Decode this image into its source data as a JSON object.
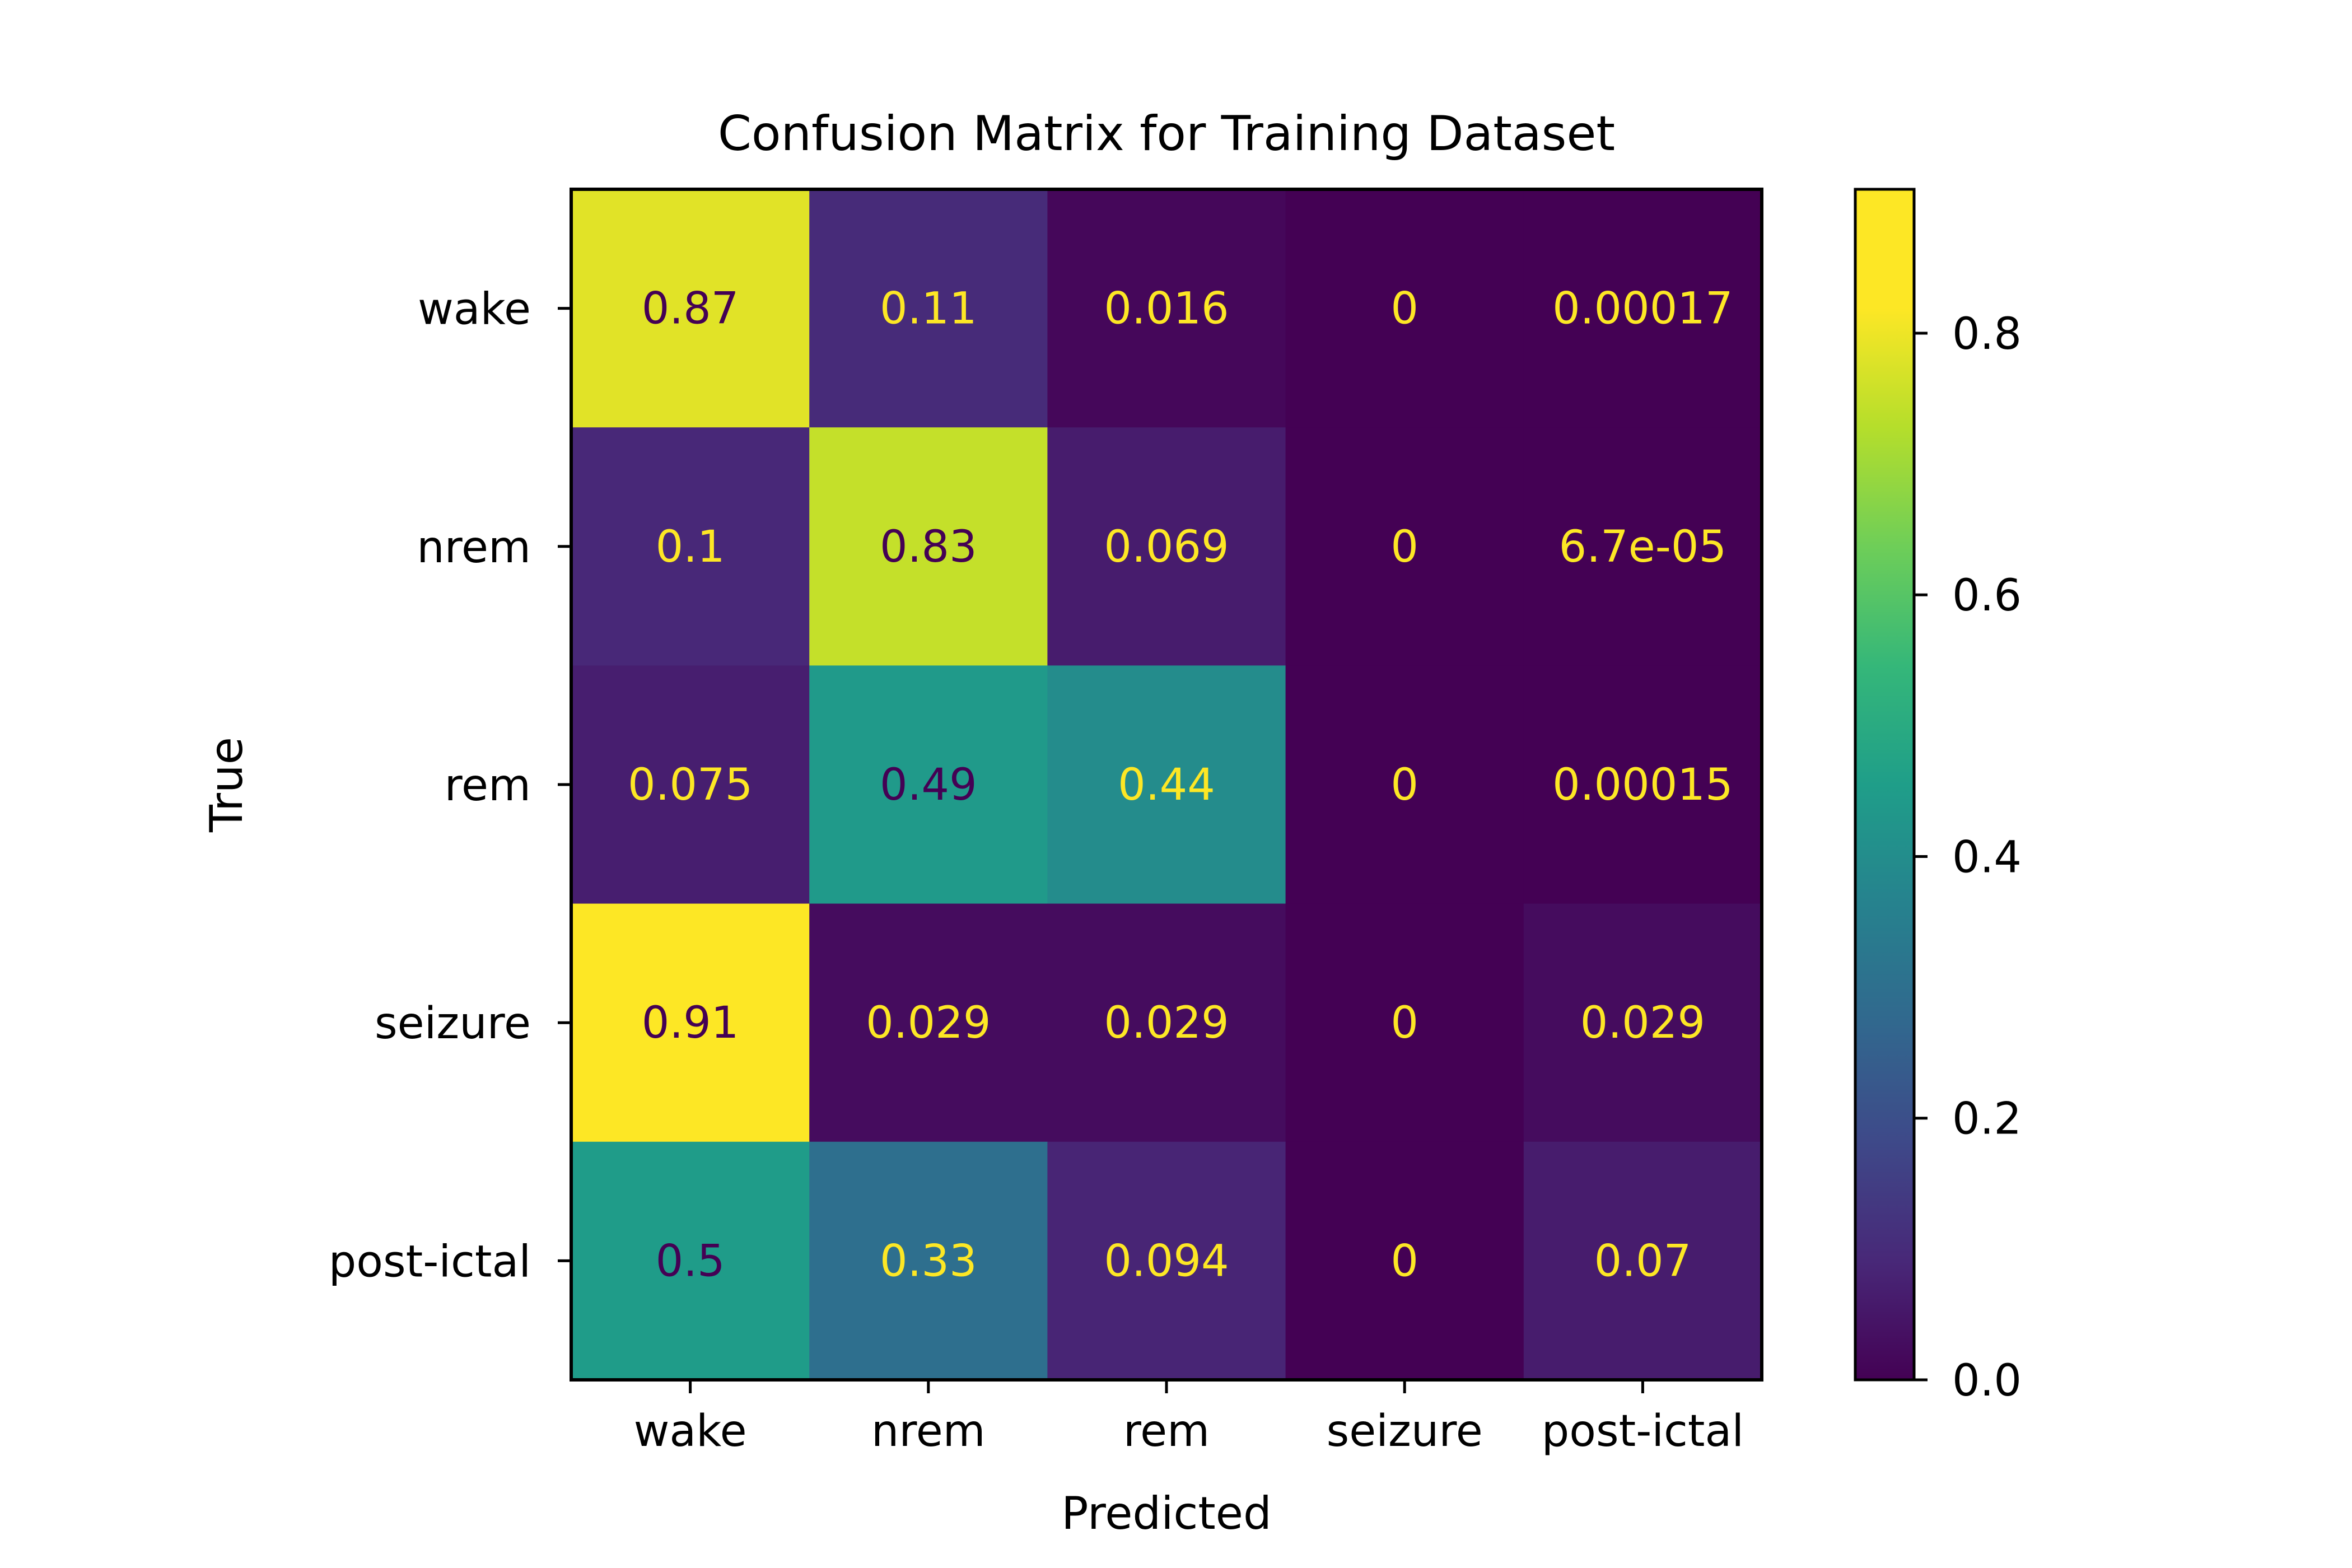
{
  "chart_data": {
    "type": "heatmap",
    "title": "Confusion Matrix for Training Dataset",
    "xlabel": "Predicted",
    "ylabel": "True",
    "x_categories": [
      "wake",
      "nrem",
      "rem",
      "seizure",
      "post-ictal"
    ],
    "y_categories": [
      "wake",
      "nrem",
      "rem",
      "seizure",
      "post-ictal"
    ],
    "values": [
      [
        0.87,
        0.11,
        0.016,
        0,
        0.00017
      ],
      [
        0.1,
        0.83,
        0.069,
        0,
        6.7e-05
      ],
      [
        0.075,
        0.49,
        0.44,
        0,
        0.00015
      ],
      [
        0.91,
        0.029,
        0.029,
        0,
        0.029
      ],
      [
        0.5,
        0.33,
        0.094,
        0,
        0.07
      ]
    ],
    "value_labels": [
      [
        "0.87",
        "0.11",
        "0.016",
        "0",
        "0.00017"
      ],
      [
        "0.1",
        "0.83",
        "0.069",
        "0",
        "6.7e-05"
      ],
      [
        "0.075",
        "0.49",
        "0.44",
        "0",
        "0.00015"
      ],
      [
        "0.91",
        "0.029",
        "0.029",
        "0",
        "0.029"
      ],
      [
        "0.5",
        "0.33",
        "0.094",
        "0",
        "0.07"
      ]
    ],
    "colormap": "viridis",
    "colorbar_range": [
      0,
      0.91
    ],
    "colorbar_ticks": [
      0.0,
      0.2,
      0.4,
      0.6,
      0.8
    ],
    "colorbar_tick_labels": [
      "0.0",
      "0.2",
      "0.4",
      "0.6",
      "0.8"
    ],
    "label_color_dark": "#440154",
    "label_color_light": "#fde725"
  }
}
